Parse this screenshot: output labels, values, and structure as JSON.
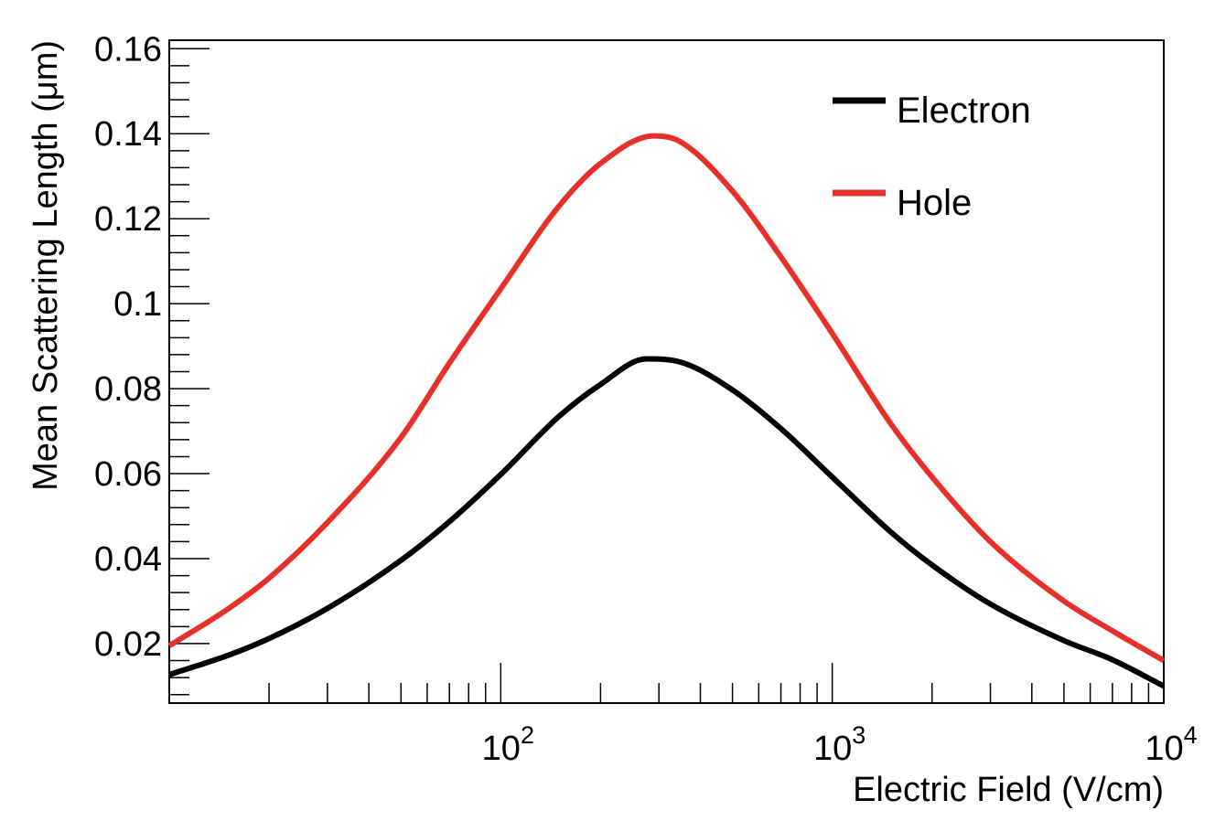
{
  "chart_data": {
    "type": "line",
    "title": "",
    "xlabel": "Electric Field (V/cm)",
    "ylabel": "Mean Scattering Length (μm)",
    "xscale": "log",
    "xlim": [
      10,
      10000
    ],
    "ylim": [
      0.006,
      0.162
    ],
    "y_ticks": [
      {
        "value": 0.02,
        "label": "0.02"
      },
      {
        "value": 0.04,
        "label": "0.04"
      },
      {
        "value": 0.06,
        "label": "0.06"
      },
      {
        "value": 0.08,
        "label": "0.08"
      },
      {
        "value": 0.1,
        "label": "0.1"
      },
      {
        "value": 0.12,
        "label": "0.12"
      },
      {
        "value": 0.14,
        "label": "0.14"
      },
      {
        "value": 0.16,
        "label": "0.16"
      }
    ],
    "x_ticks": [
      {
        "value": 100,
        "base": "10",
        "exp": "2"
      },
      {
        "value": 1000,
        "base": "10",
        "exp": "3"
      },
      {
        "value": 10000,
        "base": "10",
        "exp": "4"
      }
    ],
    "grid": false,
    "legend_position": "top-right",
    "series": [
      {
        "name": "Electron",
        "color": "#000000",
        "x": [
          10,
          15,
          20,
          30,
          50,
          70,
          100,
          150,
          200,
          275,
          350,
          500,
          700,
          1000,
          1500,
          2000,
          3000,
          5000,
          7000,
          10000
        ],
        "y": [
          0.0127,
          0.0172,
          0.0212,
          0.0283,
          0.0396,
          0.0487,
          0.0598,
          0.0735,
          0.081,
          0.087,
          0.0862,
          0.0797,
          0.0706,
          0.0592,
          0.0463,
          0.0385,
          0.0293,
          0.0207,
          0.0162,
          0.01
        ]
      },
      {
        "name": "Hole",
        "color": "#e8302a",
        "x": [
          10,
          15,
          20,
          30,
          50,
          70,
          100,
          150,
          200,
          290,
          350,
          500,
          700,
          1000,
          1500,
          2000,
          3000,
          5000,
          7000,
          10000
        ],
        "y": [
          0.0195,
          0.0281,
          0.0354,
          0.0485,
          0.0685,
          0.086,
          0.1035,
          0.123,
          0.133,
          0.1395,
          0.138,
          0.1265,
          0.111,
          0.093,
          0.0718,
          0.0592,
          0.044,
          0.03,
          0.023,
          0.016
        ]
      }
    ]
  }
}
